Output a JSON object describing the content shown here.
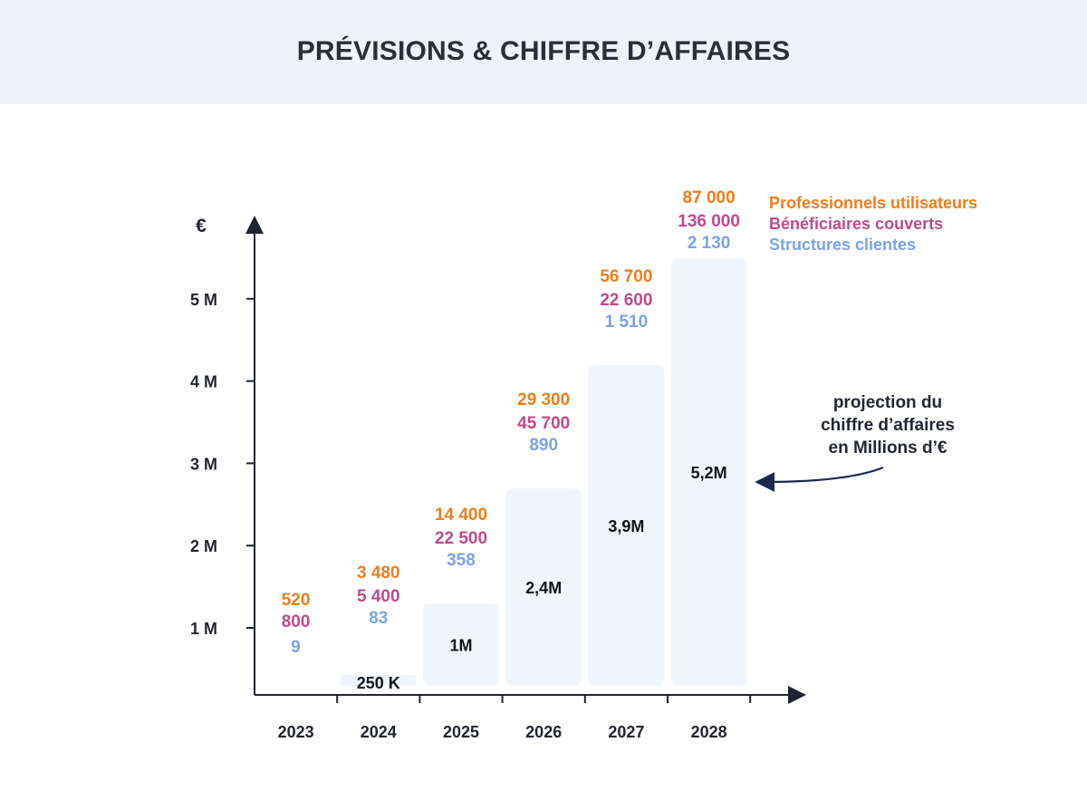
{
  "header": {
    "title": "PRÉVISIONS & CHIFFRE D’AFFAIRES"
  },
  "annotation": {
    "lines": [
      "projection du",
      "chiffre d’affaires",
      "en Millions d’€"
    ]
  },
  "colors": {
    "professionnels": "#f07d1a",
    "beneficiaires": "#c04a8e",
    "structures": "#7da2e6",
    "bar": "#f0f4fb",
    "axis": "#1f2430",
    "text": "#22252e"
  },
  "chart_data": {
    "type": "bar",
    "title": "PRÉVISIONS & CHIFFRE D’AFFAIRES",
    "ylabel": "€",
    "xlabel": "",
    "ylim": [
      0,
      5.6
    ],
    "yticks": [
      {
        "value": 1,
        "label": "1 M"
      },
      {
        "value": 2,
        "label": "2 M"
      },
      {
        "value": 3,
        "label": "3 M"
      },
      {
        "value": 4,
        "label": "4 M"
      },
      {
        "value": 5,
        "label": "5 M"
      }
    ],
    "categories": [
      "2023",
      "2024",
      "2025",
      "2026",
      "2027",
      "2028"
    ],
    "series": [
      {
        "values": [
          0,
          0.25,
          1,
          2.4,
          3.9,
          5.2
        ]
      },
      {
        "name": "Professionnels utilisateurs",
        "values": [
          520,
          3480,
          14400,
          29300,
          56700,
          87000
        ]
      },
      {
        "name": "Bénéficiaires couverts",
        "values": [
          800,
          5400,
          22500,
          45700,
          22600,
          136000
        ]
      },
      {
        "name": "Structures clientes",
        "values": [
          9,
          83,
          358,
          890,
          1510,
          2130
        ]
      }
    ],
    "bar_labels": [
      "",
      "250 K",
      "1M",
      "2,4M",
      "3,9M",
      "5,2M"
    ],
    "stat_labels": [
      [
        "520",
        "800",
        "9"
      ],
      [
        "3 480",
        "5 400",
        "83"
      ],
      [
        "14 400",
        "22 500",
        "358"
      ],
      [
        "29 300",
        "45 700",
        "890"
      ],
      [
        "56 700",
        "22 600",
        "1 510"
      ],
      [
        "87 000",
        "136 000",
        "2 130"
      ]
    ],
    "legend_position": "top-right",
    "grid": false
  }
}
